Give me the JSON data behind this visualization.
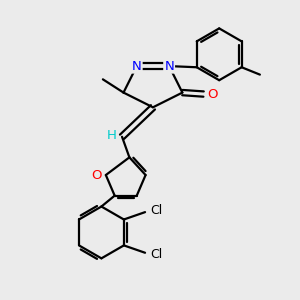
{
  "background_color": "#ebebeb",
  "bond_color": "#000000",
  "atom_colors": {
    "N": "#0000ff",
    "O": "#ff0000",
    "Cl": "#000000",
    "H": "#00cccc",
    "C": "#000000"
  },
  "figsize": [
    3.0,
    3.0
  ],
  "dpi": 100
}
